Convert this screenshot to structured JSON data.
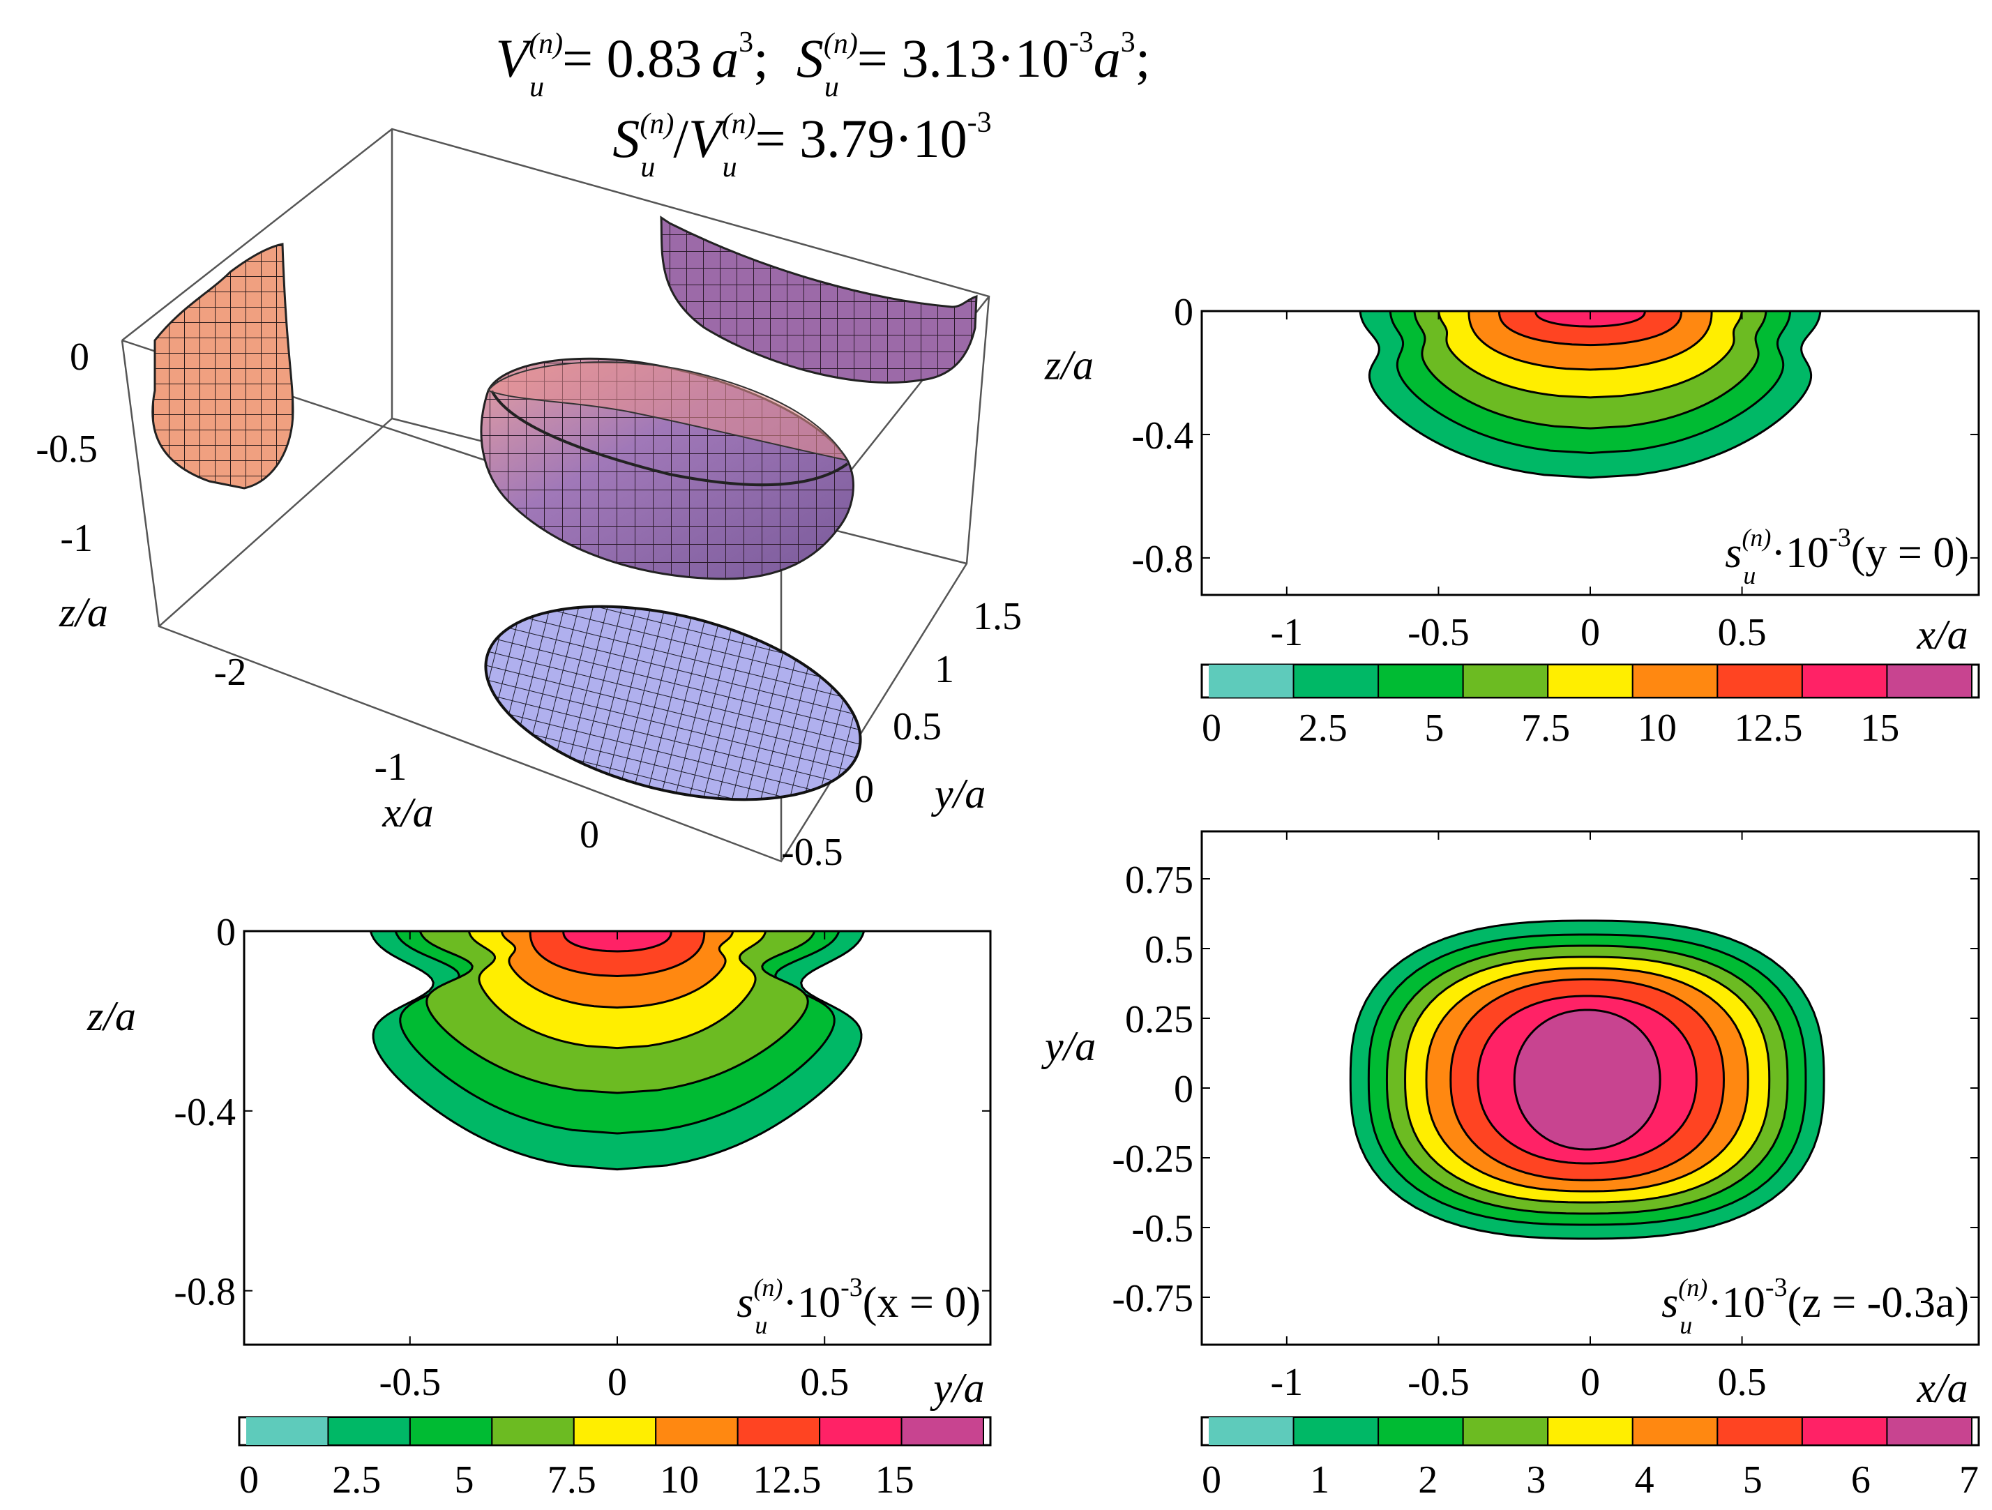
{
  "header": {
    "line1": {
      "v_sym": "V",
      "v_sub": "u",
      "v_sup": "(n)",
      "v_eq": "= 0.83",
      "a1": "a",
      "a1_exp": "3",
      "sep": ";",
      "s_sym": "S",
      "s_sub": "u",
      "s_sup": "(n)",
      "s_eq": "= 3.13·10",
      "s_exp": "-3",
      "a2": "a",
      "a2_exp": "3",
      "end": ";"
    },
    "line2": {
      "s_sym": "S",
      "s_sub": "u",
      "s_sup": "(n)",
      "slash": "/",
      "v_sym": "V",
      "v_sub": "u",
      "v_sup": "(n)",
      "eq": "= 3.79·10",
      "exp": "-3"
    }
  },
  "colors": {
    "level_palette": [
      "#5ecbbb",
      "#00b866",
      "#00bb33",
      "#6cbb22",
      "#ffee00",
      "#ff8811",
      "#ff4422",
      "#ff2266",
      "#c84490"
    ],
    "surface_orange": "#f0a080",
    "surface_purple": "#9c6aa8",
    "surface_blue": "#b0b0ee"
  },
  "chart_data": [
    {
      "id": "iso3d",
      "type": "surface3d",
      "title": "",
      "xlabel": "x/a",
      "ylabel": "y/a",
      "zlabel": "z/a",
      "x_ticks": [
        "-2",
        "-1",
        "0"
      ],
      "y_ticks": [
        "1.5",
        "1",
        "0.5",
        "0",
        "-0.5"
      ],
      "z_ticks": [
        "0",
        "-0.5",
        "-1"
      ],
      "x_range": [
        -2.6,
        0.8
      ],
      "y_range": [
        -0.5,
        1.5
      ],
      "z_range": [
        -1.3,
        0.1
      ],
      "projections": [
        "x-z wall",
        "y-z wall",
        "x-y floor"
      ]
    },
    {
      "id": "xz",
      "type": "contour",
      "annotation": {
        "s": "s",
        "sub": "u",
        "sup": "(n)",
        "mult": "·10",
        "exp": "-3",
        "cond": "(y = 0)"
      },
      "xlabel": "x/a",
      "ylabel": "z/a",
      "xlim": [
        -1.28,
        1.28
      ],
      "ylim": [
        -0.92,
        0
      ],
      "x_ticks": [
        "-1",
        "-0.5",
        "0",
        "0.5"
      ],
      "y_ticks": [
        "0",
        "-0.4",
        "-0.8"
      ],
      "contour_levels": [
        2.5,
        5,
        7.5,
        10,
        12.5,
        15
      ],
      "colorbar": {
        "ticks": [
          "0",
          "2.5",
          "5",
          "7.5",
          "10",
          "12.5",
          "15"
        ],
        "range": [
          0,
          17
        ]
      }
    },
    {
      "id": "yz",
      "type": "contour",
      "annotation": {
        "s": "s",
        "sub": "u",
        "sup": "(n)",
        "mult": "·10",
        "exp": "-3",
        "cond": "(x = 0)"
      },
      "xlabel": "y/a",
      "ylabel": "z/a",
      "xlim": [
        -0.9,
        0.9
      ],
      "ylim": [
        -0.92,
        0
      ],
      "x_ticks": [
        "-0.5",
        "0",
        "0.5"
      ],
      "y_ticks": [
        "0",
        "-0.4",
        "-0.8"
      ],
      "contour_levels": [
        2.5,
        5,
        7.5,
        10,
        12.5,
        15
      ],
      "colorbar": {
        "ticks": [
          "0",
          "2.5",
          "5",
          "7.5",
          "10",
          "12.5",
          "15"
        ],
        "range": [
          0,
          17
        ]
      }
    },
    {
      "id": "xy",
      "type": "contour",
      "annotation": {
        "s": "s",
        "sub": "u",
        "sup": "(n)",
        "mult": "·10",
        "exp": "-3",
        "cond": "(z = -0.3a)"
      },
      "xlabel": "x/a",
      "ylabel": "y/a",
      "xlim": [
        -1.28,
        1.28
      ],
      "ylim": [
        -0.92,
        0.92
      ],
      "x_ticks": [
        "-1",
        "-0.5",
        "0",
        "0.5"
      ],
      "y_ticks": [
        "0.75",
        "0.5",
        "0.25",
        "0",
        "-0.25",
        "-0.5",
        "-0.75"
      ],
      "contour_levels": [
        1,
        2,
        3,
        4,
        5,
        6
      ],
      "colorbar": {
        "ticks": [
          "0",
          "1",
          "2",
          "3",
          "4",
          "5",
          "6",
          "7"
        ],
        "range": [
          0,
          7
        ]
      }
    }
  ]
}
